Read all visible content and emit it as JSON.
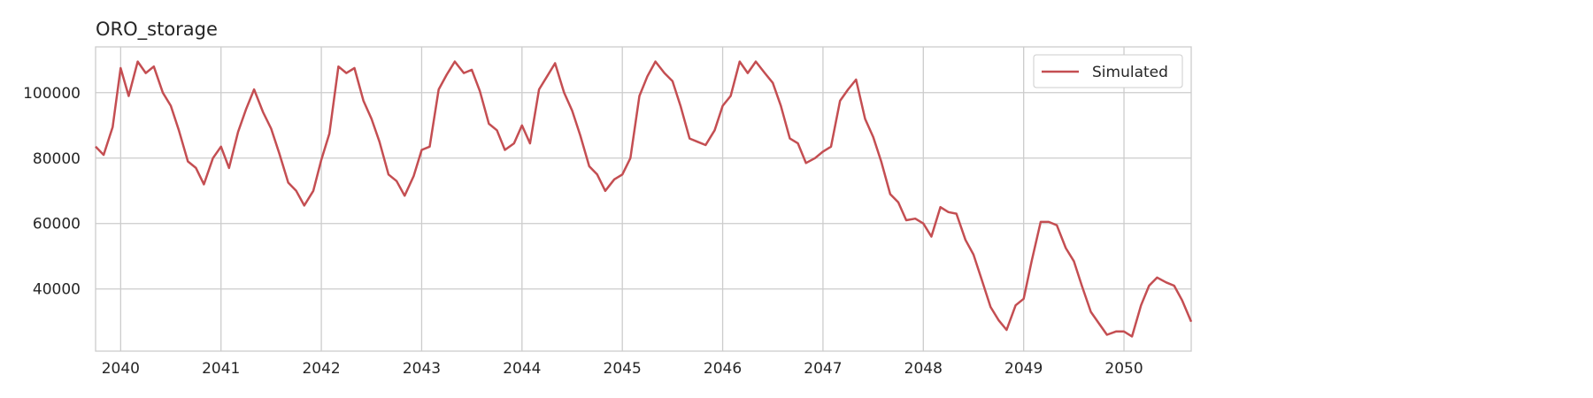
{
  "chart_data": {
    "type": "line",
    "title": "ORO_storage",
    "xlabel": "",
    "ylabel": "",
    "x_ticks": [
      "2040",
      "2041",
      "2042",
      "2043",
      "2044",
      "2045",
      "2046",
      "2047",
      "2048",
      "2049",
      "2050"
    ],
    "y_ticks": [
      "40000",
      "60000",
      "80000",
      "100000"
    ],
    "xlim": [
      2039.75,
      2050.67
    ],
    "ylim": [
      21000,
      114000
    ],
    "grid": true,
    "legend_position": "top-right",
    "series": [
      {
        "name": "Simulated",
        "color": "#c44e52",
        "x": [
          2039.75,
          2039.83,
          2039.92,
          2040.0,
          2040.08,
          2040.17,
          2040.25,
          2040.33,
          2040.42,
          2040.5,
          2040.58,
          2040.67,
          2040.75,
          2040.83,
          2040.92,
          2041.0,
          2041.08,
          2041.17,
          2041.25,
          2041.33,
          2041.42,
          2041.5,
          2041.58,
          2041.67,
          2041.75,
          2041.83,
          2041.92,
          2042.0,
          2042.08,
          2042.17,
          2042.25,
          2042.33,
          2042.42,
          2042.5,
          2042.58,
          2042.67,
          2042.75,
          2042.83,
          2042.92,
          2043.0,
          2043.08,
          2043.17,
          2043.25,
          2043.33,
          2043.42,
          2043.5,
          2043.58,
          2043.67,
          2043.75,
          2043.83,
          2043.92,
          2044.0,
          2044.08,
          2044.17,
          2044.25,
          2044.33,
          2044.42,
          2044.5,
          2044.58,
          2044.67,
          2044.75,
          2044.83,
          2044.92,
          2045.0,
          2045.08,
          2045.17,
          2045.25,
          2045.33,
          2045.42,
          2045.5,
          2045.58,
          2045.67,
          2045.75,
          2045.83,
          2045.92,
          2046.0,
          2046.08,
          2046.17,
          2046.25,
          2046.33,
          2046.42,
          2046.5,
          2046.58,
          2046.67,
          2046.75,
          2046.83,
          2046.92,
          2047.0,
          2047.08,
          2047.17,
          2047.25,
          2047.33,
          2047.42,
          2047.5,
          2047.58,
          2047.67,
          2047.75,
          2047.83,
          2047.92,
          2048.0,
          2048.08,
          2048.17,
          2048.25,
          2048.33,
          2048.42,
          2048.5,
          2048.58,
          2048.67,
          2048.75,
          2048.83,
          2048.92,
          2049.0,
          2049.08,
          2049.17,
          2049.25,
          2049.33,
          2049.42,
          2049.5,
          2049.58,
          2049.67,
          2049.75,
          2049.83,
          2049.92,
          2050.0,
          2050.08,
          2050.17,
          2050.25,
          2050.33,
          2050.42,
          2050.5,
          2050.58,
          2050.67
        ],
        "y": [
          83500,
          81000,
          89500,
          107500,
          99000,
          109500,
          106000,
          108000,
          100000,
          96000,
          88500,
          79000,
          77000,
          72000,
          80000,
          83500,
          77000,
          88000,
          95000,
          101000,
          94000,
          89000,
          81500,
          72500,
          70000,
          65500,
          70000,
          79500,
          87500,
          108000,
          106000,
          107500,
          97500,
          92000,
          85000,
          75000,
          73000,
          68500,
          74500,
          82500,
          83500,
          101000,
          105500,
          109500,
          106000,
          107000,
          100500,
          90500,
          88500,
          82500,
          84500,
          90000,
          84500,
          101000,
          105000,
          109000,
          100000,
          94500,
          87000,
          77500,
          75000,
          70000,
          73500,
          75000,
          80000,
          99000,
          105000,
          109500,
          106000,
          103500,
          96000,
          86000,
          85000,
          84000,
          88500,
          96000,
          99000,
          109500,
          106000,
          109500,
          106000,
          103000,
          96000,
          86000,
          84500,
          78500,
          80000,
          82000,
          83500,
          97500,
          101000,
          104000,
          92000,
          86500,
          79000,
          69000,
          66500,
          61000,
          61500,
          60000,
          56000,
          65000,
          63500,
          63000,
          55000,
          50500,
          43000,
          34500,
          30500,
          27500,
          35000,
          37000,
          48500,
          60500,
          60500,
          59500,
          52500,
          48500,
          41000,
          33000,
          29500,
          26000,
          27000,
          27000,
          25500,
          35000,
          41000,
          43500,
          42000,
          41000,
          36500,
          30000
        ]
      }
    ]
  }
}
